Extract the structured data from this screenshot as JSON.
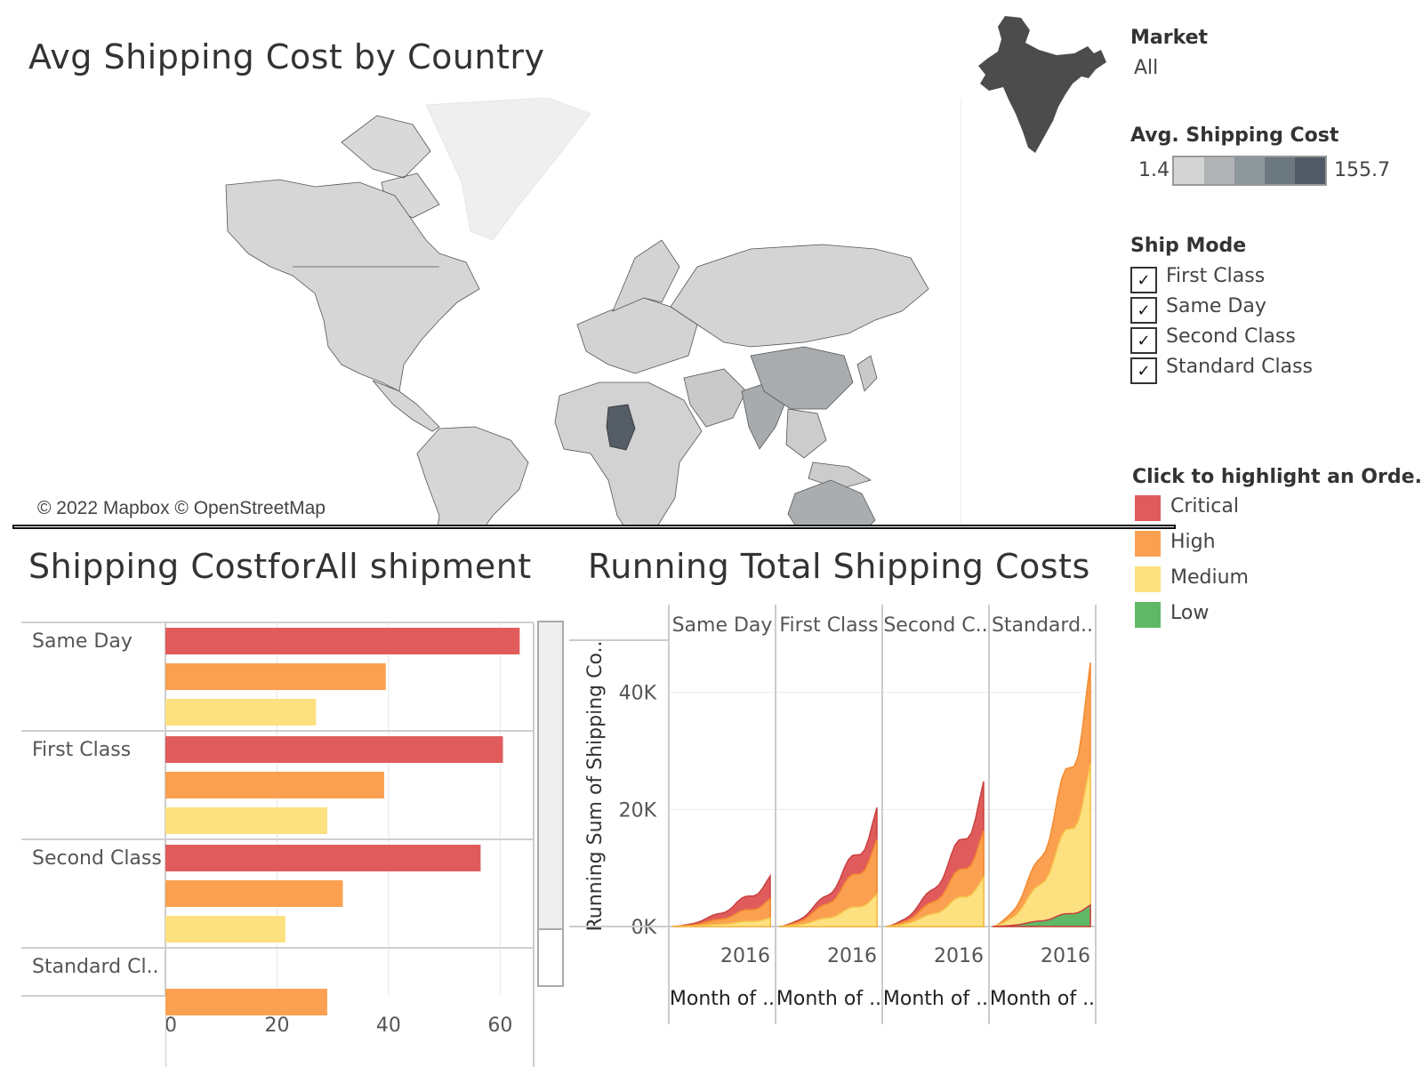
{
  "map": {
    "title": "Avg Shipping Cost by Country",
    "attribution": "© 2022 Mapbox © OpenStreetMap"
  },
  "filters": {
    "market_title": "Market",
    "market_value": "All",
    "avg_cost_title": "Avg. Shipping Cost",
    "avg_cost_min": "1.4",
    "avg_cost_max": "155.7",
    "avg_cost_colors": [
      "#d4d4d4",
      "#b0b4b6",
      "#8e979c",
      "#6c7880",
      "#505a66"
    ],
    "ship_mode_title": "Ship Mode",
    "ship_modes": [
      {
        "label": "First Class",
        "checked": true
      },
      {
        "label": "Same Day",
        "checked": true
      },
      {
        "label": "Second Class",
        "checked": true
      },
      {
        "label": "Standard Class",
        "checked": true
      }
    ],
    "priority_title": "Click to highlight an Orde..",
    "priorities": [
      {
        "label": "Critical",
        "color": "#e05c5c"
      },
      {
        "label": "High",
        "color": "#fba050"
      },
      {
        "label": "Medium",
        "color": "#fde180"
      },
      {
        "label": "Low",
        "color": "#5fb865"
      }
    ]
  },
  "chart_data": [
    {
      "type": "bar",
      "title": "Shipping CostforAll shipment",
      "orientation": "horizontal",
      "categories": [
        "Same Day",
        "First Class",
        "Second Class",
        "Standard Cl.."
      ],
      "series": [
        {
          "name": "Critical",
          "color": "#e05c5c",
          "values": [
            63.5,
            60.5,
            56.5,
            null
          ]
        },
        {
          "name": "High",
          "color": "#fba050",
          "values": [
            39.5,
            39.2,
            31.8,
            29
          ]
        },
        {
          "name": "Medium",
          "color": "#fde180",
          "values": [
            27,
            29,
            21.5,
            null
          ]
        }
      ],
      "x_ticks": [
        "0",
        "20",
        "40",
        "60"
      ],
      "xlim": [
        0,
        66
      ],
      "grid": true
    },
    {
      "type": "area",
      "title": "Running Total Shipping Costs",
      "ylabel": "Running Sum of Shipping Co..",
      "xlabel": "Month of ..",
      "panels": [
        "Same Day",
        "First Class",
        "Second C..",
        "Standard.."
      ],
      "x_tick": "2016",
      "y_ticks": [
        "0K",
        "20K",
        "40K"
      ],
      "ylim": [
        0,
        48000
      ],
      "stacking": "stacked",
      "series_order": [
        "Low",
        "Medium",
        "High",
        "Critical"
      ],
      "colors": {
        "Critical": "#e05c5c",
        "High": "#fba050",
        "Medium": "#fde180",
        "Low": "#5fb865"
      },
      "data": [
        {
          "panel": "Same Day",
          "Low": 0,
          "Medium": 1500,
          "High": 4800,
          "Critical": 8700
        },
        {
          "panel": "First Class",
          "Low": 0,
          "Medium": 5600,
          "High": 15000,
          "Critical": 20500
        },
        {
          "panel": "Second C..",
          "Low": 0,
          "Medium": 8500,
          "High": 16500,
          "Critical": 25000
        },
        {
          "panel": "Standard..",
          "Low": 3700,
          "Medium": 28000,
          "High": 45500,
          "Critical": null
        }
      ]
    }
  ]
}
